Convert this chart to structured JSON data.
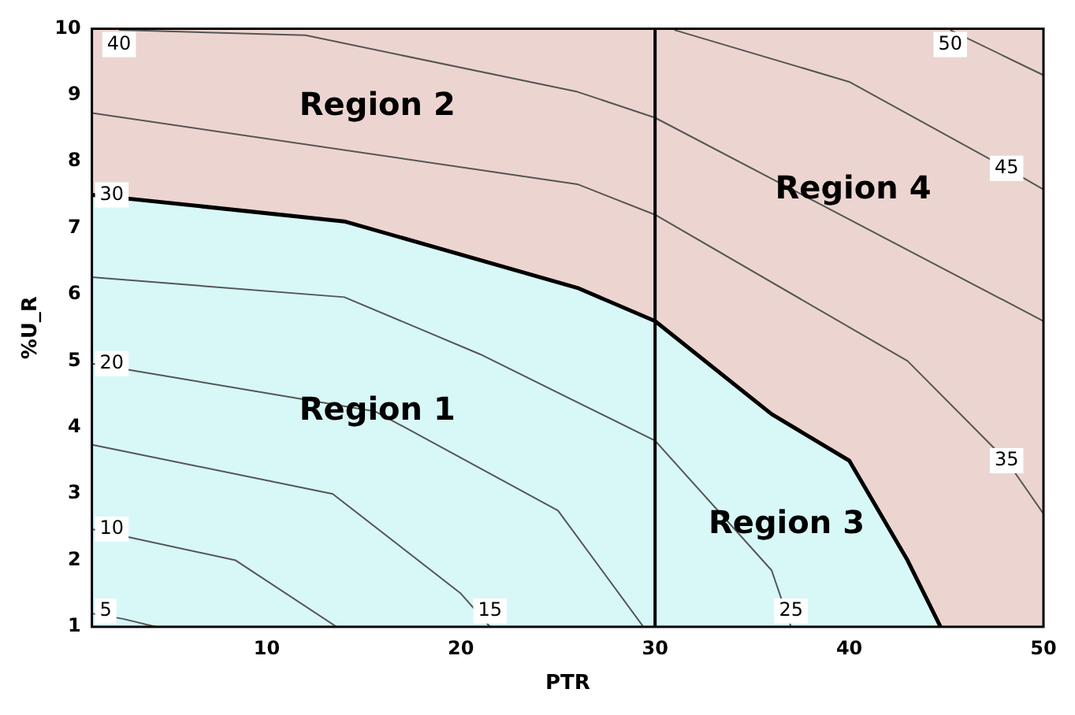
{
  "chart_data": {
    "type": "line",
    "xlabel": "PTR",
    "ylabel": "%U_R",
    "xlim": [
      1,
      50
    ],
    "xticks": [
      10,
      20,
      30,
      40,
      50
    ],
    "ylim": [
      1,
      10
    ],
    "yticks": [
      1,
      2,
      3,
      4,
      5,
      6,
      7,
      8,
      9,
      10
    ],
    "grid": false,
    "legend": false,
    "line_style": "solid",
    "bands": [
      {
        "axis": "y",
        "from": 1,
        "to": 10,
        "color": "#ecd5d0"
      }
    ],
    "ref_lines": [
      {
        "axis": "x",
        "value": 30,
        "color": "#000000"
      }
    ],
    "series": [
      {
        "name": "30",
        "type": "area",
        "color": "#d8f7f7",
        "x": [
          1,
          14,
          26,
          30,
          36,
          40,
          43,
          44.7
        ],
        "values": [
          7.5,
          7.1,
          6.1,
          5.6,
          4.2,
          3.5,
          2.0,
          1
        ]
      },
      {
        "name": "5",
        "color": "#555555",
        "x": [
          1,
          2.6,
          4.3
        ],
        "values": [
          1.2,
          1.12,
          1
        ]
      },
      {
        "name": "10",
        "color": "#555555",
        "x": [
          1,
          8.4,
          13.6
        ],
        "values": [
          2.47,
          2.0,
          1
        ]
      },
      {
        "name": "15",
        "color": "#555555",
        "x": [
          21.5,
          20,
          13.4,
          1
        ],
        "values": [
          1,
          1.5,
          3.0,
          3.74
        ]
      },
      {
        "name": "20",
        "color": "#555555",
        "x": [
          1,
          15.6,
          25,
          29.4
        ],
        "values": [
          4.96,
          4.24,
          2.75,
          1
        ]
      },
      {
        "name": "25",
        "color": "#555555",
        "x": [
          37,
          36,
          30,
          21,
          14,
          1
        ],
        "values": [
          1,
          1.85,
          3.8,
          5.1,
          5.96,
          6.26
        ]
      },
      {
        "name": "35",
        "color": "#555555",
        "x": [
          48.1,
          50
        ],
        "values": [
          3.5,
          2.7
        ]
      },
      {
        "name": null,
        "color": "#555555",
        "x": [
          1,
          26,
          30,
          43,
          48.1
        ],
        "values": [
          8.73,
          7.66,
          7.2,
          5.0,
          3.5
        ]
      },
      {
        "name": "40",
        "color": "#555555",
        "x": [
          2.4,
          12,
          26,
          30,
          50
        ],
        "values": [
          9.98,
          9.9,
          9.05,
          8.66,
          5.6
        ]
      },
      {
        "name": "45",
        "color": "#555555",
        "x": [
          48.1,
          40,
          31
        ],
        "values": [
          7.9,
          9.2,
          9.98
        ]
      },
      {
        "name": null,
        "color": "#555555",
        "x": [
          48.1,
          50
        ],
        "values": [
          7.9,
          7.58
        ]
      },
      {
        "name": "50",
        "color": "#555555",
        "x": [
          45.2,
          50
        ],
        "values": [
          9.98,
          9.3
        ]
      }
    ],
    "annotations": [
      "Region 1",
      "Region 2",
      "Region 3",
      "Region 4"
    ]
  }
}
